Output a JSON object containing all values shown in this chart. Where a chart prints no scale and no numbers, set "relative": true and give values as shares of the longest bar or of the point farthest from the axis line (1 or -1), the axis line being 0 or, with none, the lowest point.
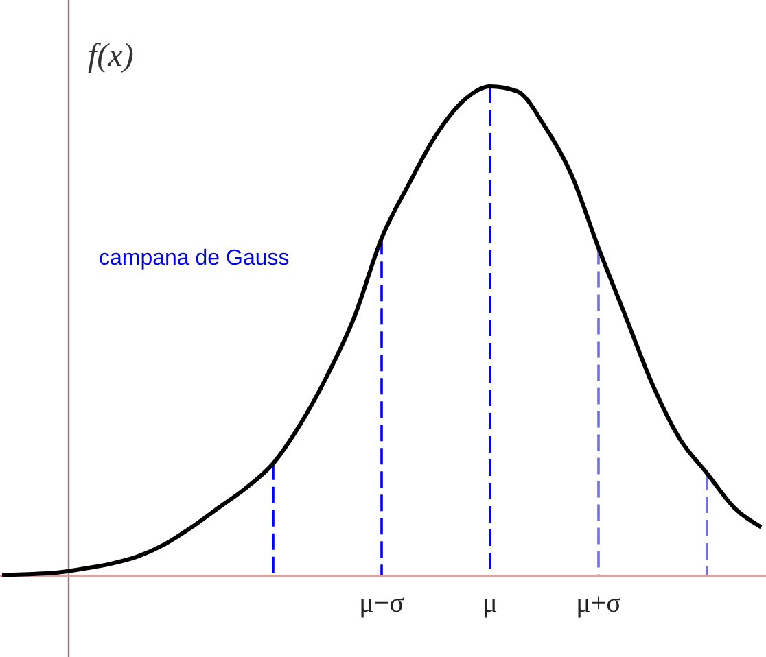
{
  "chart_data": {
    "type": "line",
    "relative": true,
    "ylabel": "f(x)",
    "annotations": [
      "campana de Gauss"
    ],
    "categories": [
      null,
      null,
      null,
      null,
      null,
      null,
      null,
      null,
      null,
      null,
      null,
      null,
      null,
      null,
      "μ−σ",
      null,
      null,
      null,
      "μ",
      null,
      null,
      null,
      "μ+σ",
      null,
      null,
      null,
      null,
      null,
      null
    ],
    "series": [
      {
        "color": "#000000",
        "values": [
          0.002,
          0.004,
          0.007,
          0.015,
          0.025,
          0.04,
          0.065,
          0.1,
          0.14,
          0.18,
          0.23,
          0.31,
          0.41,
          0.53,
          0.69,
          0.8,
          0.9,
          0.97,
          1,
          0.99,
          0.92,
          0.82,
          0.67,
          0.53,
          0.39,
          0.28,
          0.21,
          0.14,
          0.1
        ]
      }
    ],
    "ref_lines": [
      {
        "axis": "x",
        "value": "μ−σ",
        "color": "#0000ff",
        "line_style": "dashed"
      },
      {
        "axis": "x",
        "value": "μ",
        "color": "#0000ff",
        "line_style": "dashed"
      },
      {
        "axis": "x",
        "value": "μ+σ",
        "color": "#7070e0",
        "line_style": "dashed"
      }
    ]
  }
}
